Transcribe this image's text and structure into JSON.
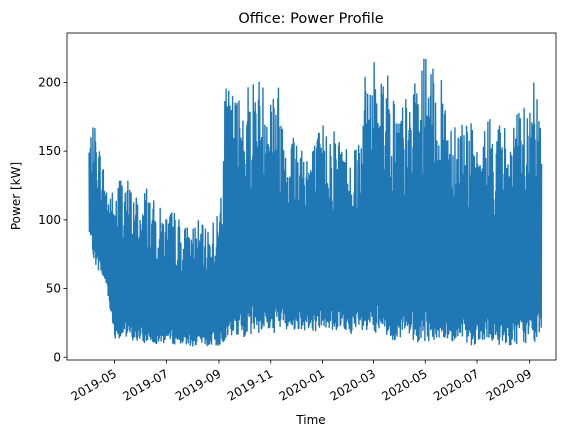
{
  "chart_data": {
    "type": "line",
    "title": "Office: Power Profile",
    "xlabel": "Time",
    "ylabel": "Power [kW]",
    "x_axis_kind": "date",
    "xlim": [
      "2019-03-06",
      "2020-10-02"
    ],
    "ylim": [
      -2,
      236
    ],
    "x_ticks": [
      "2019-05",
      "2019-07",
      "2019-09",
      "2019-11",
      "2020-01",
      "2020-03",
      "2020-05",
      "2020-07",
      "2020-09"
    ],
    "y_ticks": [
      0,
      50,
      100,
      150,
      200
    ],
    "grid": false,
    "legend": "none",
    "colors": {
      "series": "#1f77b4"
    },
    "series": [
      {
        "color": "#1f77b4",
        "band_note": "dense daily oscillation between base load (min) and peak load (max)",
        "x": [
          "2019-04-01",
          "2019-04-08",
          "2019-04-15",
          "2019-04-22",
          "2019-05-01",
          "2019-05-08",
          "2019-05-15",
          "2019-05-22",
          "2019-06-01",
          "2019-06-08",
          "2019-06-15",
          "2019-06-22",
          "2019-07-01",
          "2019-07-08",
          "2019-07-15",
          "2019-07-22",
          "2019-08-01",
          "2019-08-08",
          "2019-08-15",
          "2019-08-22",
          "2019-09-01",
          "2019-09-08",
          "2019-09-15",
          "2019-09-22",
          "2019-10-01",
          "2019-10-08",
          "2019-10-15",
          "2019-10-22",
          "2019-11-01",
          "2019-11-08",
          "2019-11-15",
          "2019-11-22",
          "2019-12-01",
          "2019-12-08",
          "2019-12-15",
          "2019-12-22",
          "2020-01-01",
          "2020-01-08",
          "2020-01-15",
          "2020-01-22",
          "2020-02-01",
          "2020-02-08",
          "2020-02-15",
          "2020-02-22",
          "2020-03-01",
          "2020-03-08",
          "2020-03-15",
          "2020-03-22",
          "2020-04-01",
          "2020-04-08",
          "2020-04-15",
          "2020-04-22",
          "2020-05-01",
          "2020-05-08",
          "2020-05-15",
          "2020-05-22",
          "2020-06-01",
          "2020-06-08",
          "2020-06-15",
          "2020-06-22",
          "2020-07-01",
          "2020-07-08",
          "2020-07-15",
          "2020-07-22",
          "2020-08-01",
          "2020-08-08",
          "2020-08-15",
          "2020-08-22",
          "2020-09-01",
          "2020-09-08",
          "2020-09-15"
        ],
        "max": [
          162,
          170,
          150,
          128,
          120,
          138,
          134,
          122,
          118,
          128,
          115,
          110,
          106,
          108,
          104,
          96,
          98,
          100,
          94,
          102,
          105,
          195,
          197,
          192,
          200,
          205,
          210,
          202,
          206,
          210,
          180,
          172,
          168,
          165,
          160,
          158,
          172,
          175,
          170,
          165,
          155,
          162,
          180,
          213,
          218,
          222,
          214,
          200,
          185,
          190,
          195,
          205,
          224,
          212,
          205,
          200,
          185,
          182,
          180,
          178,
          150,
          165,
          180,
          175,
          172,
          165,
          175,
          185,
          190,
          205,
          204
        ],
        "min": [
          90,
          68,
          60,
          50,
          14,
          13,
          12,
          12,
          10,
          10,
          10,
          10,
          10,
          10,
          9,
          9,
          8,
          8,
          8,
          8,
          8,
          12,
          13,
          14,
          15,
          16,
          17,
          18,
          18,
          18,
          20,
          20,
          20,
          20,
          19,
          19,
          20,
          20,
          19,
          18,
          18,
          16,
          15,
          15,
          14,
          14,
          13,
          13,
          12,
          12,
          12,
          11,
          11,
          11,
          10,
          10,
          10,
          10,
          9,
          9,
          9,
          9,
          9,
          9,
          9,
          9,
          9,
          10,
          10,
          11,
          12
        ]
      }
    ]
  }
}
